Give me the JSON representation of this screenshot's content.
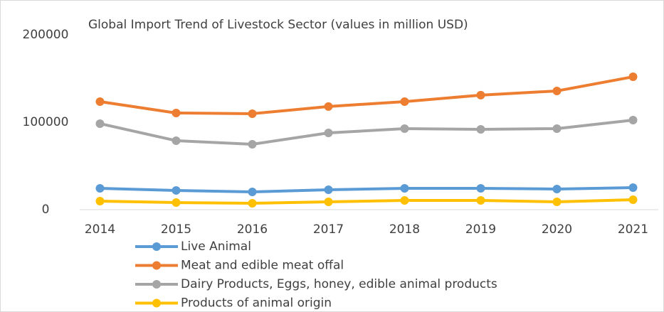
{
  "chart_data": {
    "type": "line",
    "title": "Global Import Trend of Livestock Sector (values in million USD)",
    "categories": [
      "2014",
      "2015",
      "2016",
      "2017",
      "2018",
      "2019",
      "2020",
      "2021"
    ],
    "series": [
      {
        "name": "Live Animal",
        "color": "#5b9bd5",
        "values": [
          24400,
          22000,
          20300,
          22800,
          24400,
          24400,
          23600,
          25200
        ]
      },
      {
        "name": "Meat and edible meat offal",
        "color": "#ed7d31",
        "values": [
          123600,
          110600,
          109800,
          118000,
          123600,
          131000,
          135800,
          152000
        ]
      },
      {
        "name": "Dairy Products, Eggs, honey, edible animal products",
        "color": "#a5a5a5",
        "values": [
          98400,
          78900,
          74800,
          87800,
          92700,
          91900,
          92700,
          102400
        ]
      },
      {
        "name": "Products of animal origin",
        "color": "#ffc000",
        "values": [
          9800,
          8100,
          7300,
          8900,
          10600,
          10600,
          8900,
          11400
        ]
      }
    ],
    "ylim": [
      0,
      200000
    ],
    "yticks": [
      0,
      100000,
      200000
    ],
    "legend": "bottom-left"
  }
}
